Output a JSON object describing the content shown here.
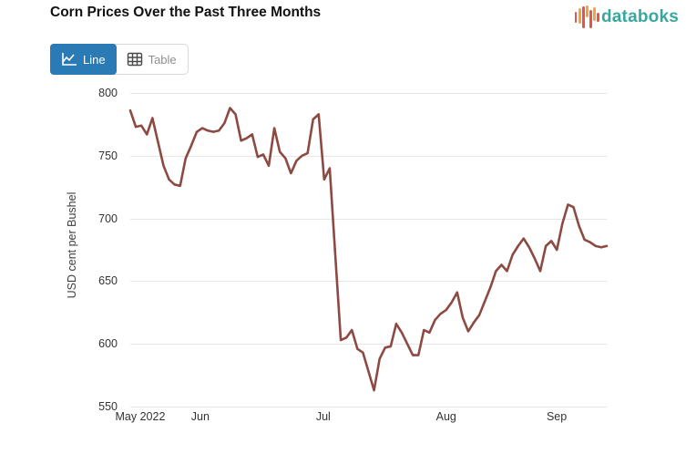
{
  "header": {
    "title": "Corn Prices Over the Past Three Months",
    "logo_text": "databoks"
  },
  "toolbar": {
    "line_label": "Line",
    "table_label": "Table"
  },
  "colors": {
    "accent_blue": "#2a7ab5",
    "line": "#8c4a42",
    "grid": "#e7e7e7",
    "logo_teal": "#38a89d",
    "logo_red": "#e25549",
    "logo_orange": "#f0a33f"
  },
  "chart_data": {
    "type": "line",
    "title": "Corn Prices Over the Past Three Months",
    "xlabel": "",
    "ylabel": "USD cent per Bushel",
    "ylim": [
      550,
      800
    ],
    "yticks": [
      800,
      750,
      700,
      650,
      600,
      550
    ],
    "grid": "horizontal",
    "legend": "none",
    "xticks": [
      {
        "label": "May 2022",
        "pos": 0.021
      },
      {
        "label": "Jun",
        "pos": 0.147
      },
      {
        "label": "Jul",
        "pos": 0.405
      },
      {
        "label": "Aug",
        "pos": 0.663
      },
      {
        "label": "Sep",
        "pos": 0.895
      }
    ],
    "series": [
      {
        "name": "Corn price (USD cent per Bushel)",
        "values": [
          786,
          773,
          774,
          767,
          780,
          761,
          742,
          731,
          727,
          726,
          748,
          758,
          769,
          772,
          770,
          769,
          770,
          776,
          788,
          783,
          762,
          764,
          767,
          749,
          751,
          742,
          772,
          753,
          748,
          736,
          746,
          750,
          752,
          779,
          783,
          731,
          740,
          671,
          603,
          605,
          611,
          596,
          593,
          578,
          563,
          588,
          597,
          598,
          616,
          609,
          600,
          591,
          591,
          611,
          609,
          619,
          624,
          627,
          633,
          641,
          621,
          610,
          617,
          623,
          634,
          645,
          658,
          663,
          658,
          671,
          678,
          684,
          677,
          668,
          658,
          678,
          682,
          675,
          696,
          711,
          709,
          694,
          683,
          681,
          678,
          677,
          678
        ]
      }
    ]
  }
}
